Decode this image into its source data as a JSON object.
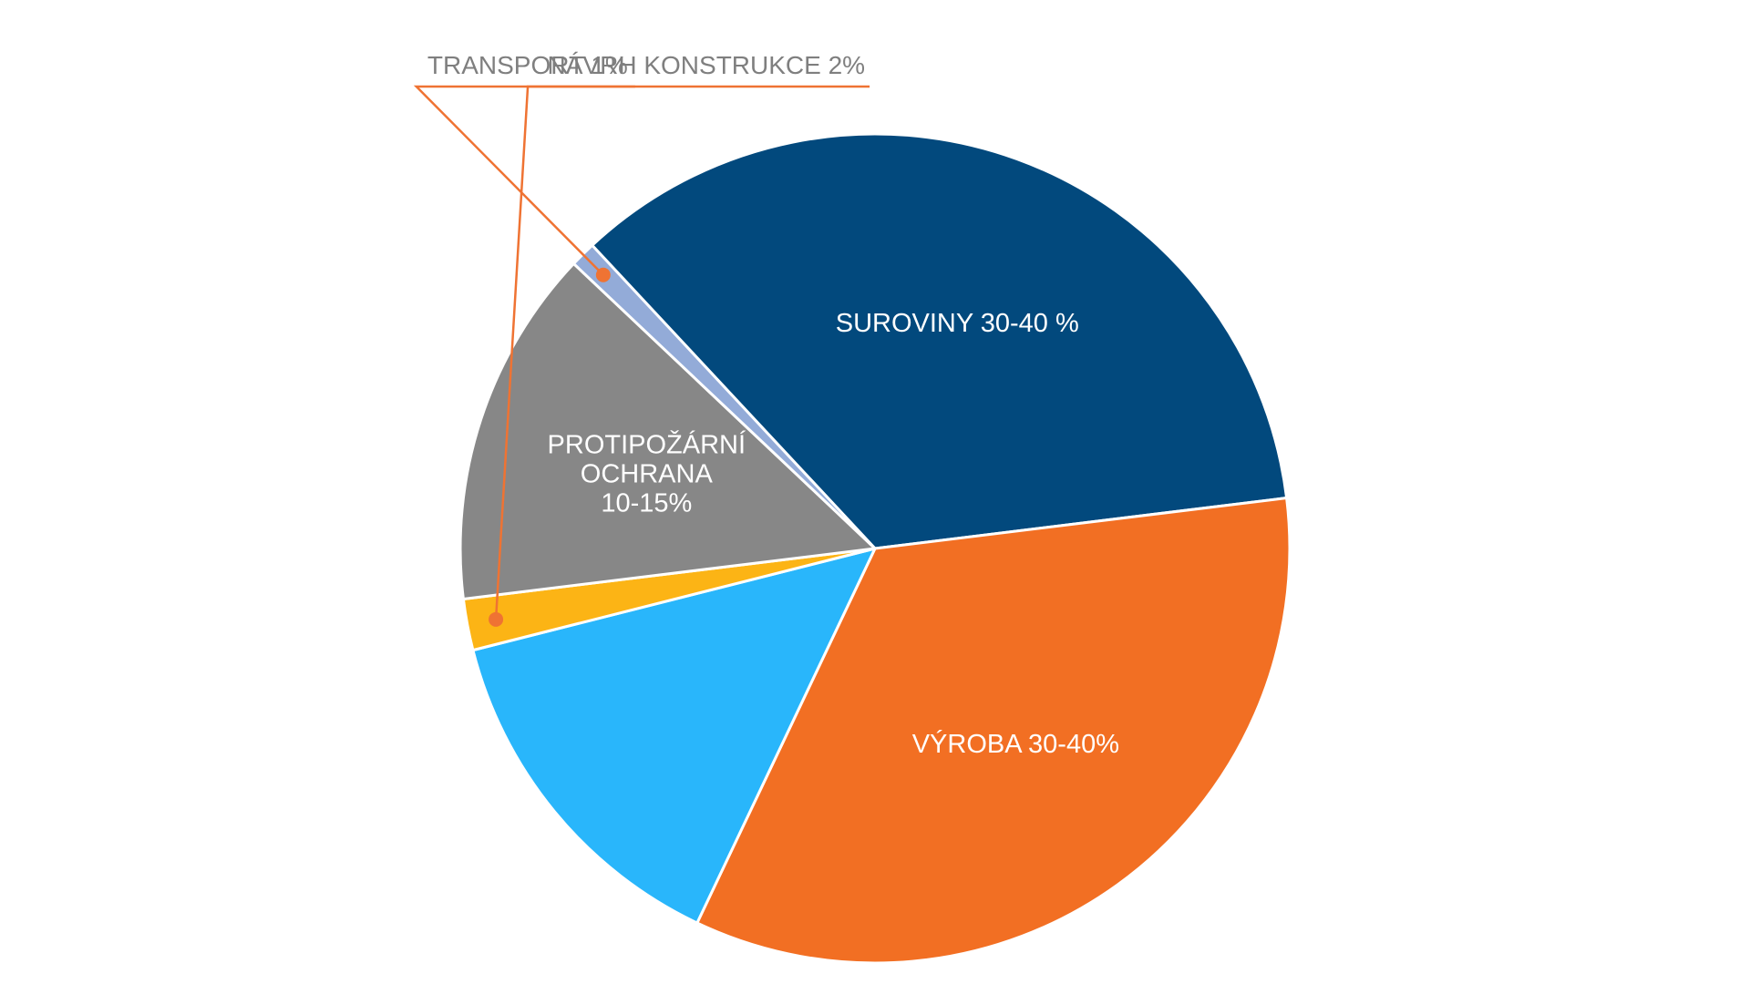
{
  "chart_data": {
    "type": "pie",
    "title": "",
    "start_angle_deg": -43,
    "slices": [
      {
        "key": "suroviny",
        "value": 35,
        "color": "#02497d",
        "label_lines": [
          "SUROVINY 30-40 %"
        ],
        "label_style": "inside"
      },
      {
        "key": "vyroba",
        "value": 34,
        "color": "#f26f23",
        "label_lines": [
          "VÝROBA 30-40%"
        ],
        "label_style": "inside"
      },
      {
        "key": "ostatni",
        "value": 14,
        "color": "#29b6fb",
        "label_lines": [],
        "label_style": "none"
      },
      {
        "key": "navrh",
        "value": 2,
        "color": "#fcb415",
        "label_lines": [
          "NÁVRH KONSTRUKCE 2%"
        ],
        "label_style": "callout-right"
      },
      {
        "key": "ochrana",
        "value": 14,
        "color": "#878787",
        "label_lines": [
          "PROTIPOŽÁRNÍ",
          "OCHRANA",
          "10-15%"
        ],
        "label_style": "inside"
      },
      {
        "key": "transport",
        "value": 1,
        "color": "#93abd8",
        "label_lines": [
          "TRANSPORT 1%"
        ],
        "label_style": "callout-left"
      }
    ],
    "callout_line_color": "#ef7333",
    "legend": "none"
  }
}
